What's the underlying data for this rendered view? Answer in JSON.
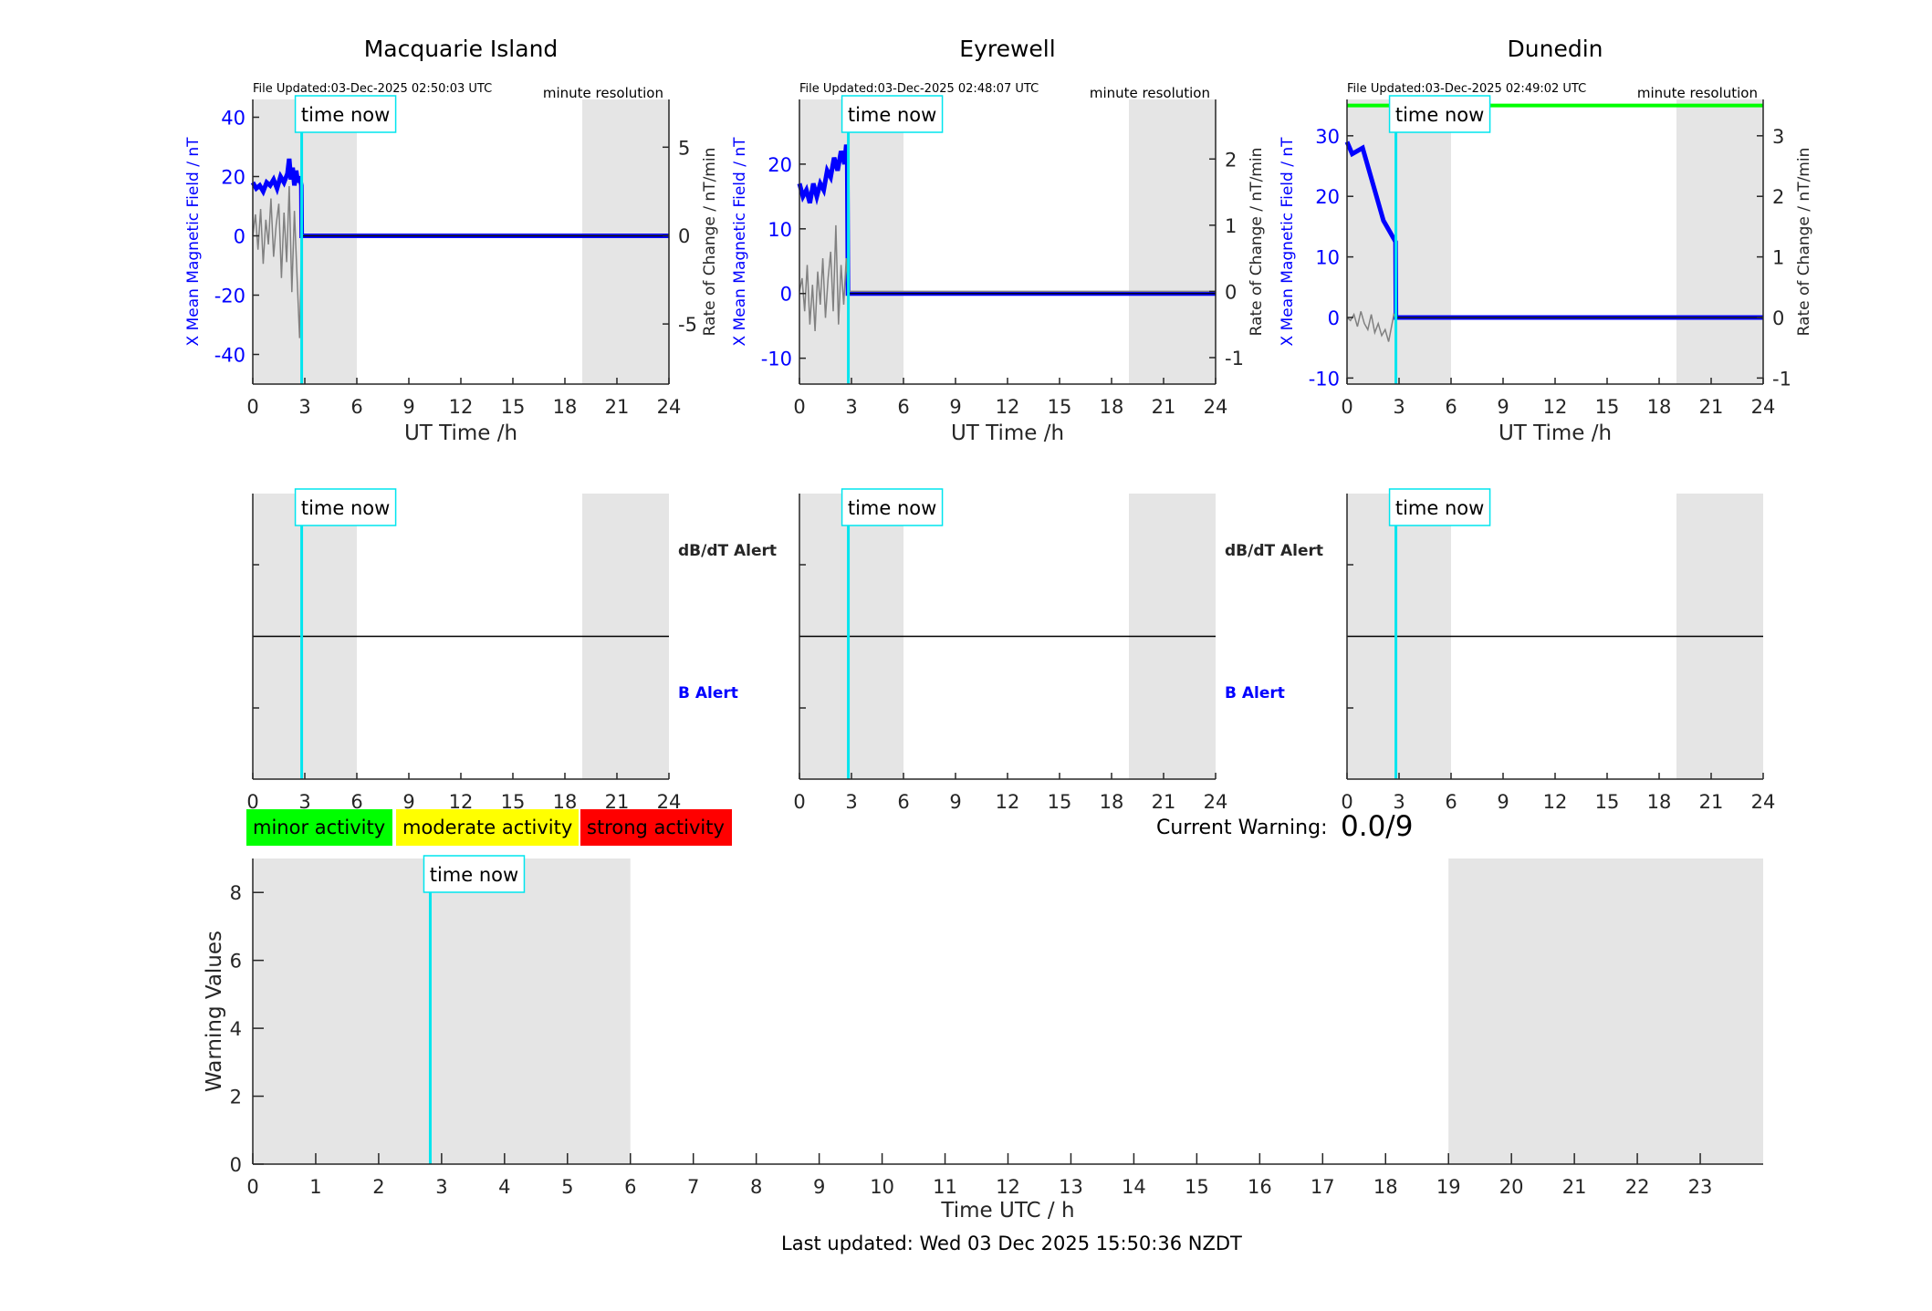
{
  "colors": {
    "x_field": "#0000ff",
    "rate": "#808080",
    "time_now": "#00e5ee",
    "night_shade": "#e5e5e5",
    "green_band": "#00ff00",
    "minor": "#00ff00",
    "moderate": "#ffff00",
    "strong": "#ff0000",
    "b_alert": "#0000ff"
  },
  "time_now_hours": 2.82,
  "time_now_label": "time now",
  "chart_data": [
    {
      "type": "line",
      "title": "Macquarie Island",
      "file_updated": "File Updated:03-Dec-2025 02:50:03 UTC",
      "resolution": "minute resolution",
      "xlabel": "UT Time /h",
      "ylabel": "X Mean Magnetic Field / nT",
      "y2label": "Rate of Change / nT/min",
      "xlim": [
        0,
        24
      ],
      "xticks": [
        "0",
        "3",
        "6",
        "9",
        "12",
        "15",
        "18",
        "21",
        "24"
      ],
      "ylim": [
        -50,
        46
      ],
      "yticks": [
        "-40",
        "-20",
        "0",
        "20",
        "40"
      ],
      "ytick_values": [
        -40,
        -20,
        0,
        20,
        40
      ],
      "y2lim": [
        -8.4,
        7.7
      ],
      "y2ticks": [
        "-5",
        "0",
        "5"
      ],
      "y2tick_values": [
        -5,
        0,
        5
      ],
      "shaded_hours": [
        [
          0,
          6
        ],
        [
          19,
          24
        ]
      ],
      "series": [
        {
          "axis": "left",
          "color": "blue",
          "x": [
            0,
            0.2,
            0.4,
            0.6,
            0.8,
            1.0,
            1.2,
            1.4,
            1.6,
            1.8,
            2.0,
            2.1,
            2.2,
            2.3,
            2.4,
            2.5,
            2.6,
            2.7,
            2.8,
            2.82,
            24
          ],
          "y": [
            18,
            16,
            17,
            15,
            18,
            17,
            19,
            16,
            20,
            18,
            21,
            26,
            19,
            23,
            17,
            22,
            18,
            20,
            17,
            0,
            0
          ]
        },
        {
          "axis": "right",
          "color": "gray",
          "x": [
            0,
            0.15,
            0.3,
            0.45,
            0.6,
            0.75,
            0.9,
            1.05,
            1.2,
            1.35,
            1.5,
            1.65,
            1.8,
            1.95,
            2.1,
            2.25,
            2.4,
            2.55,
            2.7,
            2.82,
            24
          ],
          "y": [
            0,
            1.2,
            -0.8,
            1.5,
            -1.6,
            0.9,
            -0.5,
            2.1,
            -1.2,
            0.6,
            1.8,
            -2.4,
            1.3,
            -1.5,
            2.8,
            -3.2,
            1.4,
            -2.2,
            -5.8,
            0,
            0
          ]
        }
      ],
      "green_line": null
    },
    {
      "type": "line",
      "title": "Eyrewell",
      "file_updated": "File Updated:03-Dec-2025 02:48:07 UTC",
      "resolution": "minute resolution",
      "xlabel": "UT Time /h",
      "ylabel": "X Mean Magnetic Field / nT",
      "y2label": "Rate of Change / nT/min",
      "xlim": [
        0,
        24
      ],
      "xticks": [
        "0",
        "3",
        "6",
        "9",
        "12",
        "15",
        "18",
        "21",
        "24"
      ],
      "ylim": [
        -14,
        30
      ],
      "yticks": [
        "-10",
        "0",
        "10",
        "20"
      ],
      "ytick_values": [
        -10,
        0,
        10,
        20
      ],
      "y2lim": [
        -1.4,
        2.9
      ],
      "y2ticks": [
        "-1",
        "0",
        "1",
        "2"
      ],
      "y2tick_values": [
        -1,
        0,
        1,
        2
      ],
      "shaded_hours": [
        [
          0,
          6
        ],
        [
          19,
          24
        ]
      ],
      "series": [
        {
          "axis": "left",
          "color": "blue",
          "x": [
            0,
            0.2,
            0.4,
            0.6,
            0.8,
            1.0,
            1.2,
            1.4,
            1.6,
            1.8,
            2.0,
            2.2,
            2.4,
            2.6,
            2.7,
            2.75,
            2.8,
            24
          ],
          "y": [
            17,
            15,
            16,
            14,
            17,
            15,
            17,
            16,
            19,
            18,
            21,
            19,
            22,
            20,
            23,
            22,
            0,
            0
          ]
        },
        {
          "axis": "right",
          "color": "gray",
          "x": [
            0,
            0.15,
            0.3,
            0.45,
            0.6,
            0.75,
            0.9,
            1.05,
            1.2,
            1.35,
            1.5,
            1.65,
            1.8,
            1.95,
            2.1,
            2.25,
            2.4,
            2.55,
            2.7,
            2.8,
            24
          ],
          "y": [
            0,
            0.2,
            -0.3,
            0.4,
            -0.5,
            0.1,
            -0.6,
            0.3,
            -0.2,
            0.5,
            -0.4,
            0.2,
            0.6,
            -0.3,
            1.0,
            -0.5,
            0.4,
            -0.2,
            0.5,
            0,
            0
          ]
        }
      ],
      "green_line": null
    },
    {
      "type": "line",
      "title": "Dunedin",
      "file_updated": "File Updated:03-Dec-2025 02:49:02 UTC",
      "resolution": "minute resolution",
      "xlabel": "UT Time /h",
      "ylabel": "X Mean Magnetic Field / nT",
      "y2label": "Rate of Change / nT/min",
      "xlim": [
        0,
        24
      ],
      "xticks": [
        "0",
        "3",
        "6",
        "9",
        "12",
        "15",
        "18",
        "21",
        "24"
      ],
      "ylim": [
        -11,
        36
      ],
      "yticks": [
        "-10",
        "0",
        "10",
        "20",
        "30"
      ],
      "ytick_values": [
        -10,
        0,
        10,
        20,
        30
      ],
      "y2lim": [
        -1.1,
        3.6
      ],
      "y2ticks": [
        "-1",
        "0",
        "1",
        "2",
        "3"
      ],
      "y2tick_values": [
        -1,
        0,
        1,
        2,
        3
      ],
      "shaded_hours": [
        [
          0,
          6
        ],
        [
          19,
          24
        ]
      ],
      "series": [
        {
          "axis": "left",
          "color": "blue",
          "x": [
            0,
            0.3,
            0.6,
            0.9,
            1.1,
            1.3,
            1.5,
            1.7,
            1.9,
            2.1,
            2.3,
            2.5,
            2.7,
            2.8,
            2.82,
            24
          ],
          "y": [
            29,
            27,
            27.5,
            28,
            26,
            24,
            22,
            20,
            18,
            16,
            15,
            14,
            13,
            12.5,
            0,
            0
          ]
        },
        {
          "axis": "right",
          "color": "gray",
          "x": [
            0,
            0.2,
            0.4,
            0.6,
            0.8,
            1.0,
            1.2,
            1.4,
            1.6,
            1.8,
            2.0,
            2.2,
            2.4,
            2.6,
            2.7,
            2.82,
            24
          ],
          "y": [
            0,
            -0.05,
            0.05,
            -0.15,
            0.1,
            -0.1,
            -0.2,
            0.05,
            -0.25,
            -0.1,
            -0.3,
            -0.2,
            -0.4,
            -0.1,
            0.05,
            0,
            0
          ]
        }
      ],
      "green_line": 35
    },
    {
      "type": "line",
      "label_upper": "dB/dT Alert",
      "label_lower": "B Alert",
      "xlim": [
        0,
        24
      ],
      "xticks": [
        "0",
        "3",
        "6",
        "9",
        "12",
        "15",
        "18",
        "21",
        "24"
      ],
      "shaded_hours": [
        [
          0,
          6
        ],
        [
          19,
          24
        ]
      ]
    },
    {
      "type": "line",
      "label_upper": "dB/dT Alert",
      "label_lower": "B Alert",
      "xlim": [
        0,
        24
      ],
      "xticks": [
        "0",
        "3",
        "6",
        "9",
        "12",
        "15",
        "18",
        "21",
        "24"
      ],
      "shaded_hours": [
        [
          0,
          6
        ],
        [
          19,
          24
        ]
      ]
    },
    {
      "type": "line",
      "xlim": [
        0,
        24
      ],
      "xticks": [
        "0",
        "3",
        "6",
        "9",
        "12",
        "15",
        "18",
        "21",
        "24"
      ],
      "shaded_hours": [
        [
          0,
          6
        ],
        [
          19,
          24
        ]
      ]
    },
    {
      "type": "line",
      "xlabel": "Time UTC / h",
      "ylabel": "Warning Values",
      "xlim": [
        0,
        24
      ],
      "xticks": [
        "0",
        "1",
        "2",
        "3",
        "4",
        "5",
        "6",
        "7",
        "8",
        "9",
        "10",
        "11",
        "12",
        "13",
        "14",
        "15",
        "16",
        "17",
        "18",
        "19",
        "20",
        "21",
        "22",
        "23"
      ],
      "ylim": [
        0,
        9
      ],
      "yticks": [
        "0",
        "2",
        "4",
        "6",
        "8"
      ],
      "ytick_values": [
        0,
        2,
        4,
        6,
        8
      ],
      "shaded_hours": [
        [
          0,
          6
        ],
        [
          19,
          24
        ]
      ],
      "values": []
    }
  ],
  "legend": {
    "minor": "minor activity",
    "moderate": "moderate activity",
    "strong": "strong activity"
  },
  "current_warning": {
    "label": "Current Warning:",
    "value": "0.0/9"
  },
  "footer": "Last updated: Wed 03 Dec 2025 15:50:36 NZDT"
}
